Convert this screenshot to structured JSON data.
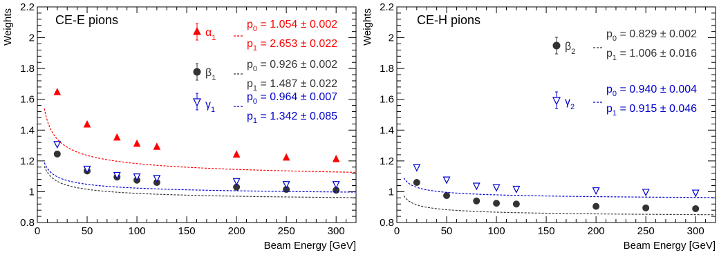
{
  "chart_data": [
    {
      "type": "scatter",
      "title": "CE-E pions",
      "xlabel": "Beam Energy [GeV]",
      "ylabel": "Weights",
      "xlim": [
        0,
        320
      ],
      "ylim": [
        0.8,
        2.2
      ],
      "x_ticks": [
        "0",
        "50",
        "100",
        "150",
        "200",
        "250",
        "300"
      ],
      "y_ticks": [
        "0.8",
        "1",
        "1.2",
        "1.4",
        "1.6",
        "1.8",
        "2",
        "2.2"
      ],
      "grid": false,
      "legend_position": "top-right",
      "series": [
        {
          "name": "α",
          "subscript": "1",
          "marker": "triangle-up-filled",
          "color": "#ff0000",
          "x": [
            20,
            50,
            80,
            100,
            120,
            200,
            250,
            300
          ],
          "y": [
            1.645,
            1.435,
            1.35,
            1.31,
            1.29,
            1.24,
            1.22,
            1.21
          ],
          "fit": {
            "p0": 1.054,
            "p1": 2.653
          },
          "params": [
            {
              "sym": "p",
              "sub": "0",
              "text": " = 1.054 ± 0.002"
            },
            {
              "sym": "p",
              "sub": "1",
              "text": " = 2.653 ± 0.022"
            }
          ]
        },
        {
          "name": "β",
          "subscript": "1",
          "marker": "circle-filled",
          "color": "#333333",
          "x": [
            20,
            50,
            80,
            100,
            120,
            200,
            250,
            300
          ],
          "y": [
            1.245,
            1.135,
            1.095,
            1.075,
            1.06,
            1.03,
            1.015,
            1.01
          ],
          "fit": {
            "p0": 0.926,
            "p1": 1.487
          },
          "params": [
            {
              "sym": "p",
              "sub": "0",
              "text": " = 0.926 ± 0.002"
            },
            {
              "sym": "p",
              "sub": "1",
              "text": " = 1.487 ± 0.022"
            }
          ]
        },
        {
          "name": "γ",
          "subscript": "1",
          "marker": "triangle-down-open",
          "color": "#0000cc",
          "x": [
            20,
            50,
            80,
            100,
            120,
            200,
            250,
            300
          ],
          "y": [
            1.31,
            1.15,
            1.11,
            1.1,
            1.09,
            1.07,
            1.05,
            1.05
          ],
          "fit": {
            "p0": 0.964,
            "p1": 1.342
          },
          "params": [
            {
              "sym": "p",
              "sub": "0",
              "text": " = 0.964 ± 0.007"
            },
            {
              "sym": "p",
              "sub": "1",
              "text": " = 1.342 ± 0.085"
            }
          ]
        }
      ]
    },
    {
      "type": "scatter",
      "title": "CE-H pions",
      "xlabel": "Beam Energy [GeV]",
      "ylabel": "Weights",
      "xlim": [
        0,
        320
      ],
      "ylim": [
        0.8,
        2.2
      ],
      "x_ticks": [
        "0",
        "50",
        "100",
        "150",
        "200",
        "250",
        "300"
      ],
      "y_ticks": [
        "0.8",
        "1",
        "1.2",
        "1.4",
        "1.6",
        "1.8",
        "2",
        "2.2"
      ],
      "grid": false,
      "legend_position": "top-right",
      "series": [
        {
          "name": "β",
          "subscript": "2",
          "marker": "circle-filled",
          "color": "#333333",
          "x": [
            20,
            50,
            80,
            100,
            120,
            200,
            250,
            300
          ],
          "y": [
            1.06,
            0.975,
            0.94,
            0.925,
            0.92,
            0.905,
            0.895,
            0.89
          ],
          "fit": {
            "p0": 0.829,
            "p1": 1.006
          },
          "params": [
            {
              "sym": "p",
              "sub": "0",
              "text": " = 0.829 ± 0.002"
            },
            {
              "sym": "p",
              "sub": "1",
              "text": " = 1.006 ± 0.016"
            }
          ]
        },
        {
          "name": "γ",
          "subscript": "2",
          "marker": "triangle-down-open",
          "color": "#0000cc",
          "x": [
            20,
            50,
            80,
            100,
            120,
            200,
            250,
            300
          ],
          "y": [
            1.16,
            1.08,
            1.04,
            1.03,
            1.02,
            1.01,
            1.0,
            0.995
          ],
          "fit": {
            "p0": 0.94,
            "p1": 0.915
          },
          "params": [
            {
              "sym": "p",
              "sub": "0",
              "text": " = 0.940 ± 0.004"
            },
            {
              "sym": "p",
              "sub": "1",
              "text": " = 0.915 ± 0.046"
            }
          ]
        }
      ]
    }
  ]
}
